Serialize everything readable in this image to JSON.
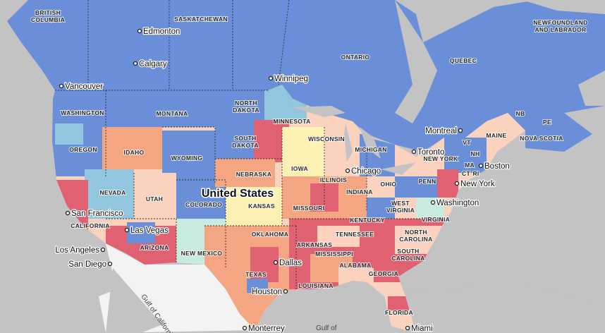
{
  "regions": [
    [
      "BRITISH",
      "COLUMBIA"
    ],
    "SASKATCHEWAN",
    [
      "NEWFOUNDLAND",
      "AND LABRADOR"
    ],
    "ONTARIO",
    "QUEBEC",
    "NB",
    "PE",
    "MAINE",
    "NOVA SCOTIA",
    "WASHINGTON",
    "MONTANA",
    [
      "NORTH",
      "DAKOTA"
    ],
    "MINNESOTA",
    [
      "SOUTH",
      "DAKOTA"
    ],
    "WISCONSIN",
    "MICHIGAN",
    "VT",
    "NH",
    "NEW YORK",
    "MA",
    "CT",
    "RI",
    "OREGON",
    "IDAHO",
    "WYOMING",
    "NEBRASKA",
    "IOWA",
    "ILLINOIS",
    "INDIANA",
    "OHIO",
    "PENN",
    "NEVADA",
    "UTAH",
    "COLORADO",
    "KANSAS",
    "MISSOURI",
    [
      "WEST",
      "VIRGINIA"
    ],
    "KENTUCKY",
    "VIRGINIA",
    "CALIFORNIA",
    "OKLAHOMA",
    "TENNESSEE",
    [
      "NORTH",
      "CAROLINA"
    ],
    "ARIZONA",
    "NEW MEXICO",
    "ARKANSAS",
    "MISSISSIPPI",
    [
      "SOUTH",
      "CAROLINA"
    ],
    "ALABAMA",
    "GEORGIA",
    "TEXAS",
    "LOUISIANA",
    "FLORIDA"
  ],
  "cities": [
    "Edmonton",
    "Calgary",
    "Vancouver",
    "Winnipeg",
    "Montreal",
    "Toronto",
    "Boston",
    "Chicago",
    "New York",
    "Washington",
    "San Francisco",
    "Las Vegas",
    "Los Angeles",
    "San Diego",
    "Dallas",
    "Houston",
    "Monterrey",
    "Miami"
  ],
  "country": "United States",
  "water": [
    "Gulf of California",
    "Gulf of"
  ]
}
